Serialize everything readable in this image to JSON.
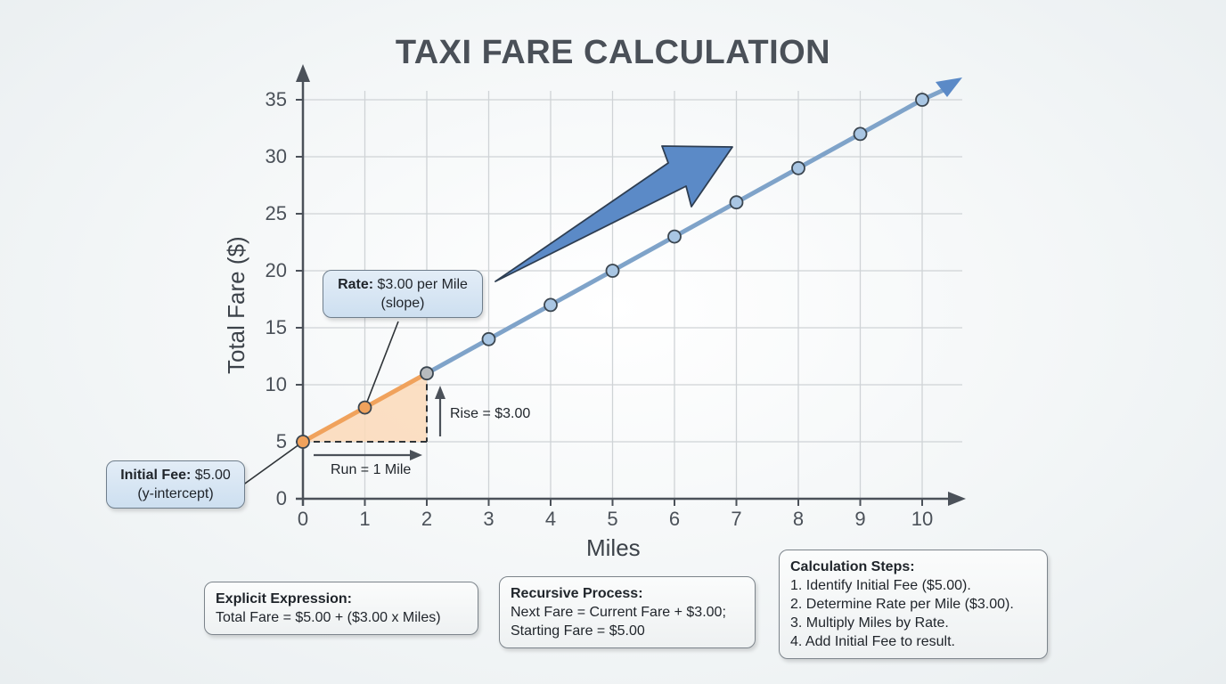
{
  "title": "TAXI FARE CALCULATION",
  "axes": {
    "xlabel": "Miles",
    "ylabel": "Total Fare ($)",
    "x_ticks": [
      "0",
      "1",
      "2",
      "3",
      "4",
      "5",
      "6",
      "7",
      "8",
      "9",
      "10"
    ],
    "y_ticks": [
      "0",
      "5",
      "10",
      "15",
      "20",
      "25",
      "30",
      "35"
    ]
  },
  "callouts": {
    "initial_fee": {
      "label": "Initial Fee:",
      "value": "$5.00",
      "sub": "(y-intercept)"
    },
    "rate": {
      "label": "Rate:",
      "value": "$3.00 per Mile",
      "sub": "(slope)"
    }
  },
  "annotations": {
    "rise": "Rise = $3.00",
    "run": "Run = 1 Mile"
  },
  "notes": {
    "explicit": {
      "heading": "Explicit Expression:",
      "lines": [
        "Total Fare = $5.00 + ($3.00 x Miles)"
      ]
    },
    "recursive": {
      "heading": "Recursive Process:",
      "lines": [
        "Next Fare = Current Fare + $3.00;",
        "Starting Fare = $5.00"
      ]
    },
    "steps": {
      "heading": "Calculation Steps:",
      "lines": [
        "1. Identify Initial Fee ($5.00).",
        "2. Determine Rate per Mile ($3.00).",
        "3. Multiply Miles by Rate.",
        "4. Add Initial Fee to result."
      ]
    }
  },
  "colors": {
    "line": "#7fa3c9",
    "point_fill": "#a9c6e3",
    "highlight_orange": "#f0a25c",
    "highlight_fill": "#fbd9b8",
    "trend_arrow": "#5b8ac7",
    "axis": "#4b5159",
    "grid": "#cfd3d6"
  },
  "chart_data": {
    "type": "line",
    "title": "TAXI FARE CALCULATION",
    "xlabel": "Miles",
    "ylabel": "Total Fare ($)",
    "x": [
      0,
      1,
      2,
      3,
      4,
      5,
      6,
      7,
      8,
      9,
      10
    ],
    "series": [
      {
        "name": "Total Fare",
        "values": [
          5,
          8,
          11,
          14,
          17,
          20,
          23,
          26,
          29,
          32,
          35
        ]
      }
    ],
    "xlim": [
      0,
      10
    ],
    "ylim": [
      0,
      35
    ],
    "x_ticks": [
      0,
      1,
      2,
      3,
      4,
      5,
      6,
      7,
      8,
      9,
      10
    ],
    "y_ticks": [
      0,
      5,
      10,
      15,
      20,
      25,
      30,
      35
    ],
    "grid": true,
    "annotations": [
      "Initial Fee: $5.00 (y-intercept)",
      "Rate: $3.00 per Mile (slope)",
      "Rise = $3.00",
      "Run = 1 Mile"
    ],
    "formula": "Total Fare = 5.00 + 3.00 x Miles"
  }
}
